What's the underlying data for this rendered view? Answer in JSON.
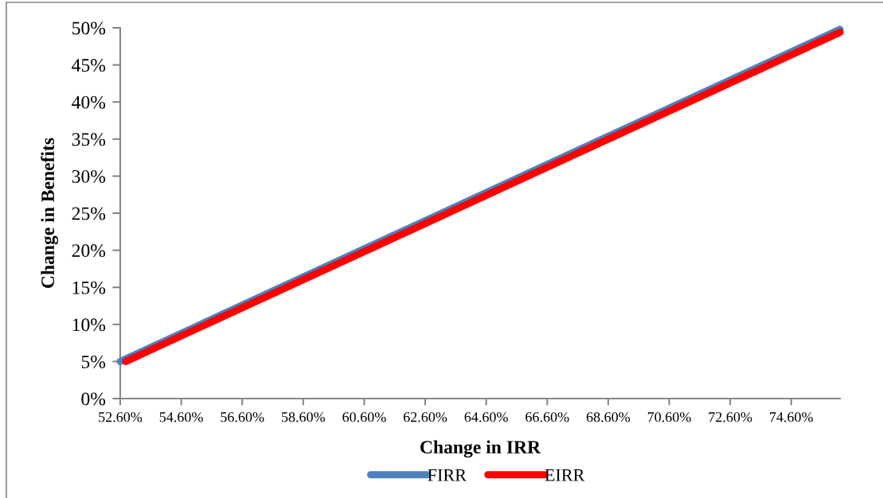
{
  "chart_data": {
    "type": "line",
    "xlabel": "Change in IRR",
    "ylabel": "Change in Benefits",
    "series": [
      {
        "name": "FIRR",
        "color": "#4f81bd",
        "x": [
          52.6,
          76.2
        ],
        "values": [
          5,
          49.8
        ]
      },
      {
        "name": "EIRR",
        "color": "#ff0000",
        "x": [
          52.78,
          76.2
        ],
        "values": [
          5,
          49.4
        ]
      }
    ],
    "xlim": [
      52.6,
      76.2
    ],
    "xticks": [
      {
        "value": 52.6,
        "label": "52.60%"
      },
      {
        "value": 54.6,
        "label": "54.60%"
      },
      {
        "value": 56.6,
        "label": "56.60%"
      },
      {
        "value": 58.6,
        "label": "58.60%"
      },
      {
        "value": 60.6,
        "label": "60.60%"
      },
      {
        "value": 62.6,
        "label": "62.60%"
      },
      {
        "value": 64.6,
        "label": "64.60%"
      },
      {
        "value": 66.6,
        "label": "66.60%"
      },
      {
        "value": 68.6,
        "label": "68.60%"
      },
      {
        "value": 70.6,
        "label": "70.60%"
      },
      {
        "value": 72.6,
        "label": "72.60%"
      },
      {
        "value": 74.6,
        "label": "74.60%"
      }
    ],
    "ylim": [
      0,
      50
    ],
    "yticks": [
      {
        "value": 0,
        "label": "0%"
      },
      {
        "value": 5,
        "label": "5%"
      },
      {
        "value": 10,
        "label": "10%"
      },
      {
        "value": 15,
        "label": "15%"
      },
      {
        "value": 20,
        "label": "20%"
      },
      {
        "value": 25,
        "label": "25%"
      },
      {
        "value": 30,
        "label": "30%"
      },
      {
        "value": 35,
        "label": "35%"
      },
      {
        "value": 40,
        "label": "40%"
      },
      {
        "value": 45,
        "label": "45%"
      },
      {
        "value": 50,
        "label": "50%"
      }
    ],
    "grid": false,
    "legend": "bottom",
    "marker": "none",
    "line_style": "solid"
  }
}
